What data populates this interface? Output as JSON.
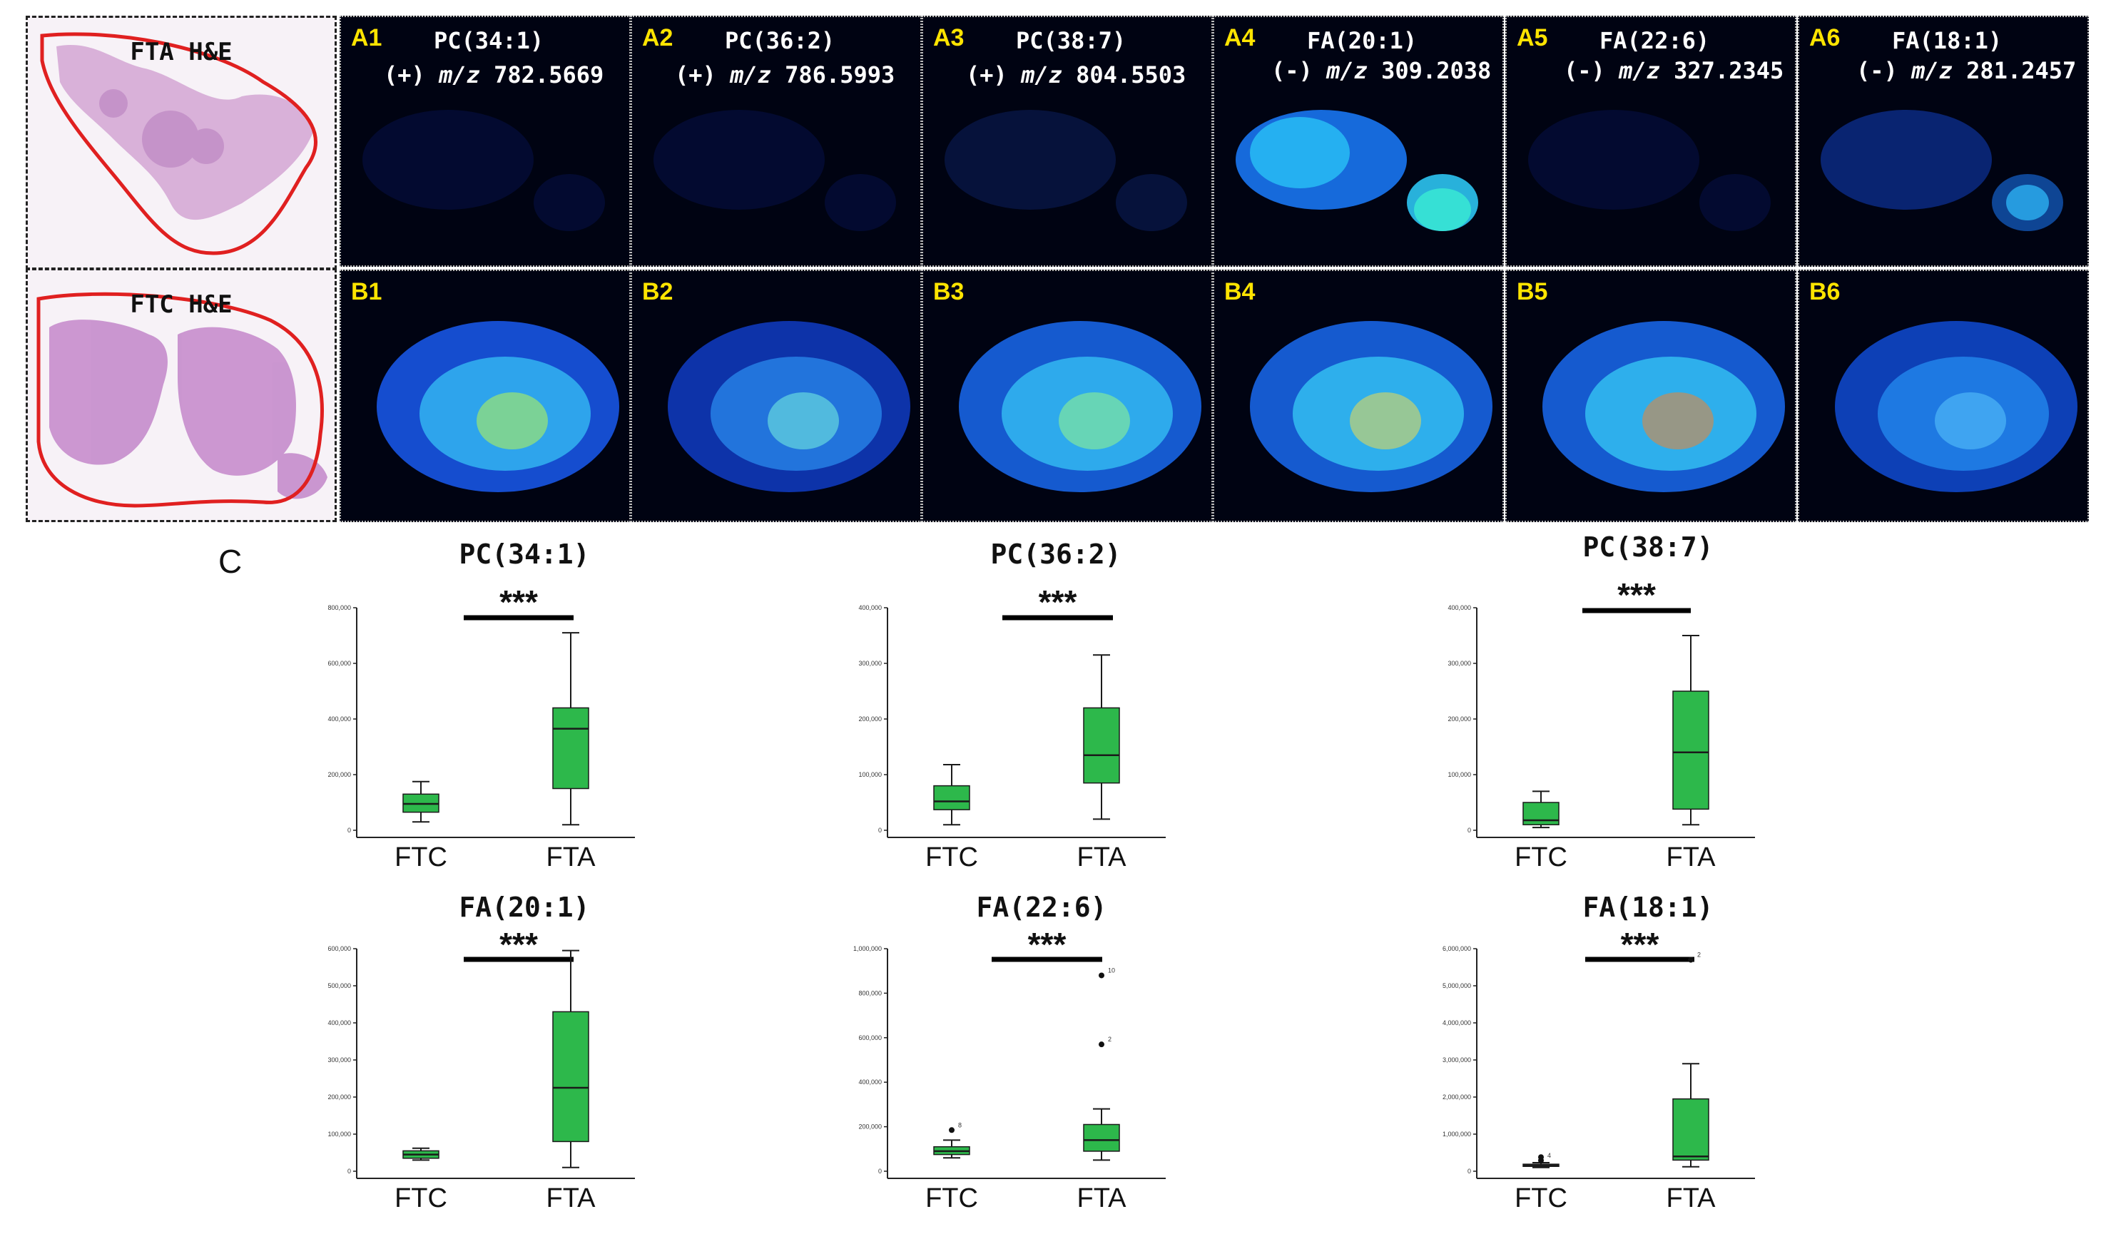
{
  "he_images": [
    {
      "title": "FTA H&E"
    },
    {
      "title": "FTC H&E"
    }
  ],
  "msi_top": [
    {
      "label": "A1",
      "compound": "PC(34:1)",
      "ion": "(+)",
      "mz_prefix": "m/z",
      "mz": "782.5669"
    },
    {
      "label": "A2",
      "compound": "PC(36:2)",
      "ion": "(+)",
      "mz_prefix": "m/z",
      "mz": "786.5993"
    },
    {
      "label": "A3",
      "compound": "PC(38:7)",
      "ion": "(+)",
      "mz_prefix": "m/z",
      "mz": "804.5503"
    },
    {
      "label": "A4",
      "compound": "FA(20:1)",
      "ion": "(-)",
      "mz_prefix": "m/z",
      "mz": "309.2038"
    },
    {
      "label": "A5",
      "compound": "FA(22:6)",
      "ion": "(-)",
      "mz_prefix": "m/z",
      "mz": "327.2345"
    },
    {
      "label": "A6",
      "compound": "FA(18:1)",
      "ion": "(-)",
      "mz_prefix": "m/z",
      "mz": "281.2457"
    }
  ],
  "msi_bottom": [
    {
      "label": "B1"
    },
    {
      "label": "B2"
    },
    {
      "label": "B3"
    },
    {
      "label": "B4"
    },
    {
      "label": "B5"
    },
    {
      "label": "B6"
    }
  ],
  "panel_c_label": "C",
  "colors": {
    "box_fill": "#2db84b",
    "box_stroke": "#1a1a1a",
    "sig_bar": "#000000",
    "outline": "#e02020"
  },
  "chart_data": [
    {
      "type": "box",
      "title": "PC(34:1)",
      "significance": "***",
      "categories": [
        "FTC",
        "FTA"
      ],
      "ylim": [
        0,
        800000
      ],
      "yticks": [
        0,
        200000,
        400000,
        600000,
        800000
      ],
      "tick_labels": [
        "0",
        "200,000",
        "400,000",
        "600,000",
        "800,000"
      ],
      "boxes": [
        {
          "min": 30000,
          "q1": 65000,
          "median": 95000,
          "q3": 130000,
          "max": 175000,
          "outliers": []
        },
        {
          "min": 20000,
          "q1": 150000,
          "median": 365000,
          "q3": 440000,
          "max": 710000,
          "outliers": []
        }
      ]
    },
    {
      "type": "box",
      "title": "PC(36:2)",
      "significance": "***",
      "categories": [
        "FTC",
        "FTA"
      ],
      "ylim": [
        0,
        400000
      ],
      "yticks": [
        0,
        100000,
        200000,
        300000,
        400000
      ],
      "tick_labels": [
        "0",
        "100,000",
        "200,000",
        "300,000",
        "400,000"
      ],
      "boxes": [
        {
          "min": 10000,
          "q1": 37000,
          "median": 52000,
          "q3": 80000,
          "max": 118000,
          "outliers": []
        },
        {
          "min": 20000,
          "q1": 85000,
          "median": 135000,
          "q3": 220000,
          "max": 315000,
          "outliers": []
        }
      ]
    },
    {
      "type": "box",
      "title": "PC(38:7)",
      "significance": "***",
      "categories": [
        "FTC",
        "FTA"
      ],
      "ylim": [
        0,
        400000
      ],
      "yticks": [
        0,
        100000,
        200000,
        300000,
        400000
      ],
      "tick_labels": [
        "0",
        "100,000",
        "200,000",
        "300,000",
        "400,000"
      ],
      "boxes": [
        {
          "min": 5000,
          "q1": 10000,
          "median": 18000,
          "q3": 50000,
          "max": 70000,
          "outliers": []
        },
        {
          "min": 10000,
          "q1": 38000,
          "median": 140000,
          "q3": 250000,
          "max": 350000,
          "outliers": []
        }
      ]
    },
    {
      "type": "box",
      "title": "FA(20:1)",
      "significance": "***",
      "categories": [
        "FTC",
        "FTA"
      ],
      "ylim": [
        0,
        600000
      ],
      "yticks": [
        0,
        100000,
        200000,
        300000,
        400000,
        500000,
        600000
      ],
      "tick_labels": [
        "0",
        "100,000",
        "200,000",
        "300,000",
        "400,000",
        "500,000",
        "600,000"
      ],
      "boxes": [
        {
          "min": 30000,
          "q1": 35000,
          "median": 45000,
          "q3": 55000,
          "max": 62000,
          "outliers": []
        },
        {
          "min": 10000,
          "q1": 80000,
          "median": 225000,
          "q3": 430000,
          "max": 595000,
          "outliers": []
        }
      ]
    },
    {
      "type": "box",
      "title": "FA(22:6)",
      "significance": "***",
      "categories": [
        "FTC",
        "FTA"
      ],
      "ylim": [
        0,
        1000000
      ],
      "yticks": [
        0,
        200000,
        400000,
        600000,
        800000,
        1000000
      ],
      "tick_labels": [
        "0",
        "200,000",
        "400,000",
        "600,000",
        "800,000",
        "1,000,000"
      ],
      "boxes": [
        {
          "min": 60000,
          "q1": 75000,
          "median": 90000,
          "q3": 110000,
          "max": 140000,
          "outliers": [
            {
              "value": 185000,
              "label": "8"
            }
          ]
        },
        {
          "min": 50000,
          "q1": 90000,
          "median": 140000,
          "q3": 210000,
          "max": 280000,
          "outliers": [
            {
              "value": 570000,
              "label": "2"
            },
            {
              "value": 880000,
              "label": "10"
            }
          ]
        }
      ]
    },
    {
      "type": "box",
      "title": "FA(18:1)",
      "significance": "***",
      "categories": [
        "FTC",
        "FTA"
      ],
      "ylim": [
        0,
        6000000
      ],
      "yticks": [
        0,
        1000000,
        2000000,
        3000000,
        4000000,
        5000000,
        6000000
      ],
      "tick_labels": [
        "0",
        "1,000,000",
        "2,000,000",
        "3,000,000",
        "4,000,000",
        "5,000,000",
        "6,000,000"
      ],
      "boxes": [
        {
          "min": 100000,
          "q1": 130000,
          "median": 160000,
          "q3": 190000,
          "max": 230000,
          "outliers": [
            {
              "value": 290000,
              "label": "4"
            },
            {
              "value": 380000,
              "label": ""
            }
          ]
        },
        {
          "min": 120000,
          "q1": 300000,
          "median": 400000,
          "q3": 1950000,
          "max": 2900000,
          "outliers": [
            {
              "value": 5700000,
              "label": "2"
            }
          ]
        }
      ]
    }
  ]
}
